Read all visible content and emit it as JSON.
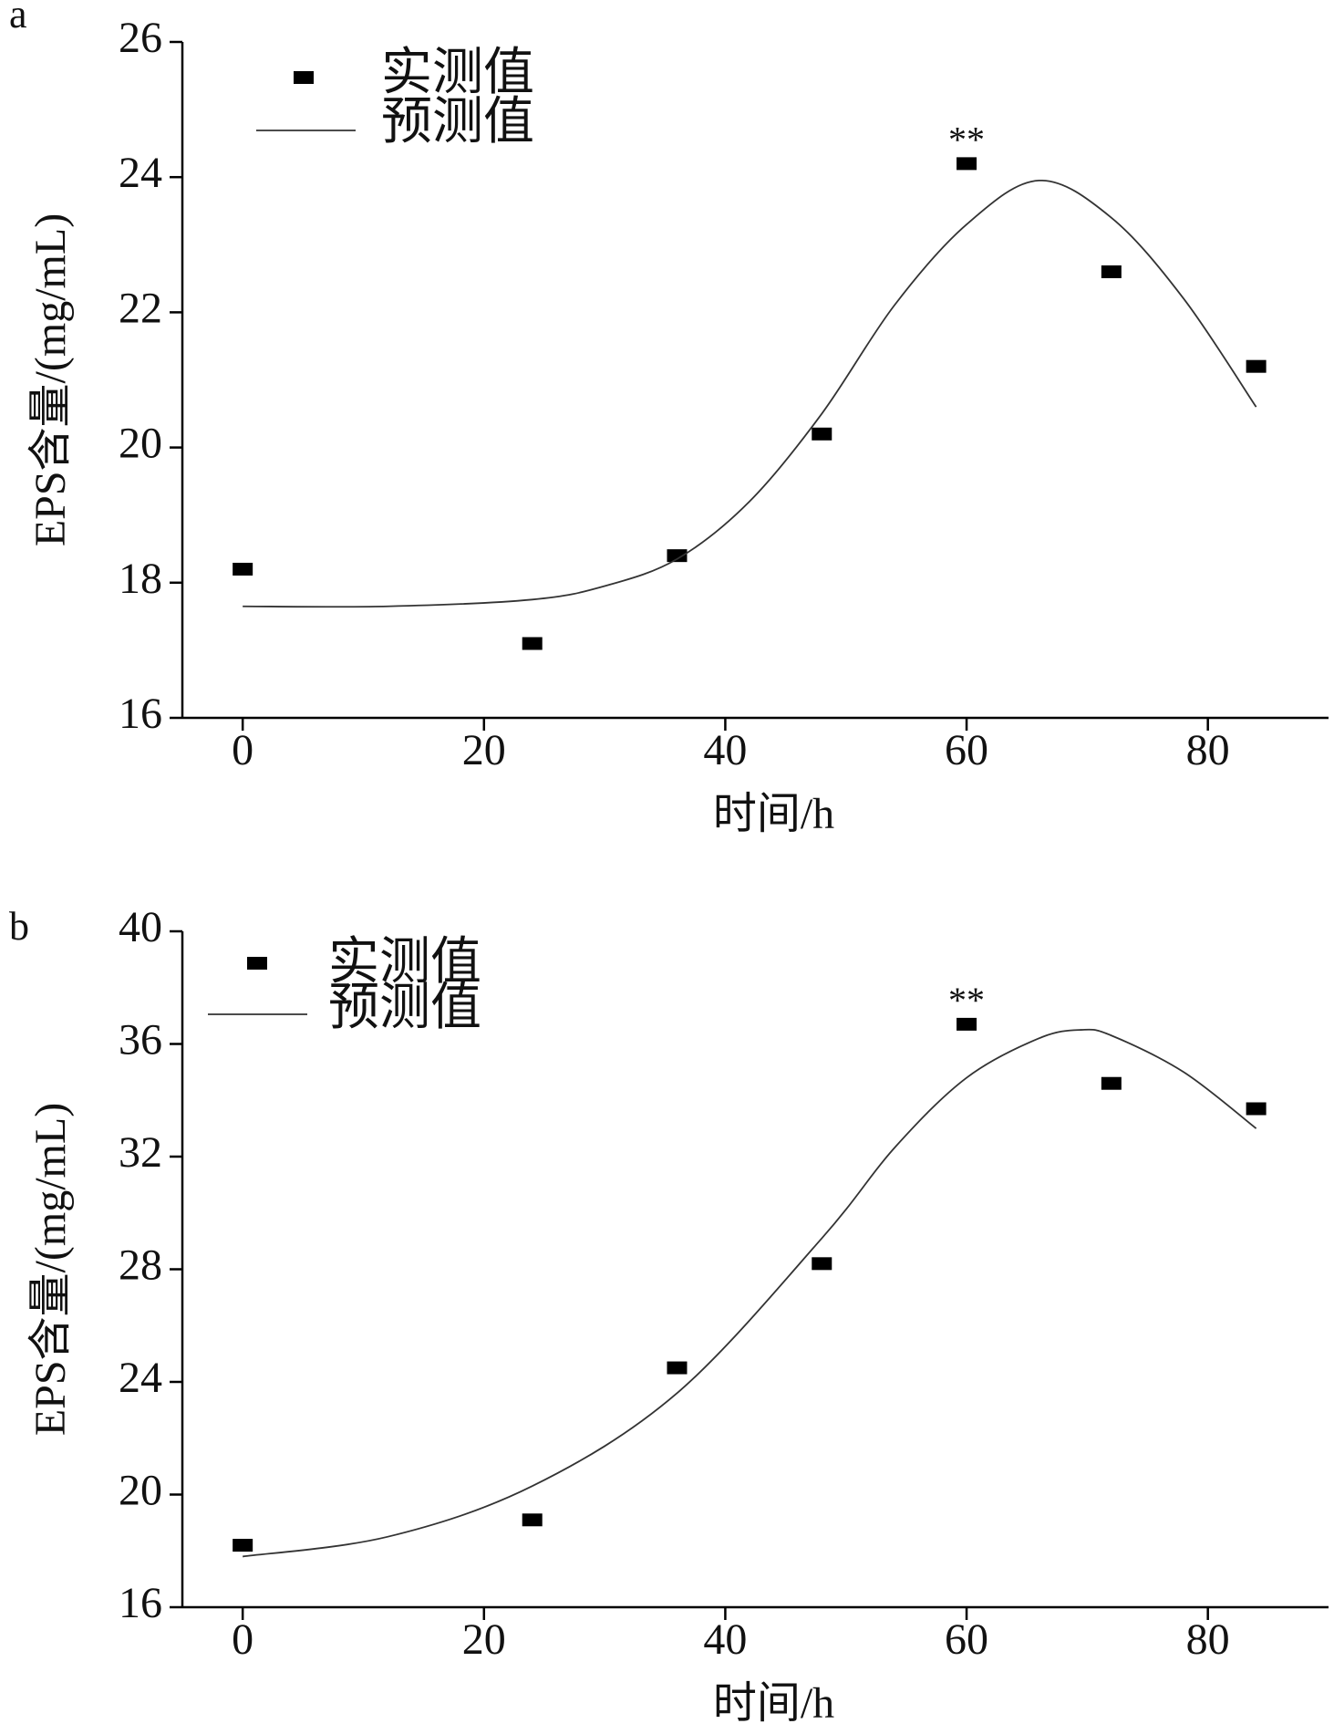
{
  "chart_data": [
    {
      "type": "scatter",
      "panel_label": "a",
      "xlabel": "时间/h",
      "ylabel": "EPS含量/(mg/mL)",
      "annotation": "**",
      "xlim": [
        -5,
        90
      ],
      "xticks": [
        0,
        20,
        40,
        60,
        80
      ],
      "ylim": [
        16,
        26
      ],
      "yticks": [
        16,
        18,
        20,
        22,
        24,
        26
      ],
      "series": [
        {
          "name": "实测值",
          "style": "marker",
          "color": "#000000",
          "x": [
            0,
            24,
            36,
            48,
            60,
            72,
            84
          ],
          "values": [
            18.2,
            17.1,
            18.4,
            20.2,
            24.2,
            22.6,
            21.2
          ]
        },
        {
          "name": "预测值",
          "style": "line",
          "color": "#333333",
          "x": [
            0,
            12,
            24,
            30,
            36,
            42,
            48,
            54,
            60,
            66,
            72,
            78,
            84
          ],
          "values": [
            17.65,
            17.65,
            17.75,
            17.95,
            18.35,
            19.2,
            20.5,
            22.1,
            23.3,
            23.95,
            23.4,
            22.2,
            20.6
          ]
        }
      ]
    },
    {
      "type": "scatter",
      "panel_label": "b",
      "xlabel": "时间/h",
      "ylabel": "EPS含量/(mg/mL)",
      "annotation": "**",
      "xlim": [
        -5,
        90
      ],
      "xticks": [
        0,
        20,
        40,
        60,
        80
      ],
      "ylim": [
        16,
        40
      ],
      "yticks": [
        16,
        20,
        24,
        28,
        32,
        36,
        40
      ],
      "series": [
        {
          "name": "实测值",
          "style": "marker",
          "color": "#000000",
          "x": [
            0,
            24,
            36,
            48,
            60,
            72,
            84
          ],
          "values": [
            18.2,
            19.1,
            24.5,
            28.2,
            36.7,
            34.6,
            33.7
          ]
        },
        {
          "name": "预测值",
          "style": "line",
          "color": "#333333",
          "x": [
            0,
            12,
            24,
            36,
            48,
            54,
            60,
            66,
            69.5,
            72,
            78,
            84
          ],
          "values": [
            17.8,
            18.5,
            20.3,
            23.6,
            29.1,
            32.3,
            34.8,
            36.2,
            36.5,
            36.3,
            35.0,
            33.0
          ]
        }
      ]
    }
  ]
}
